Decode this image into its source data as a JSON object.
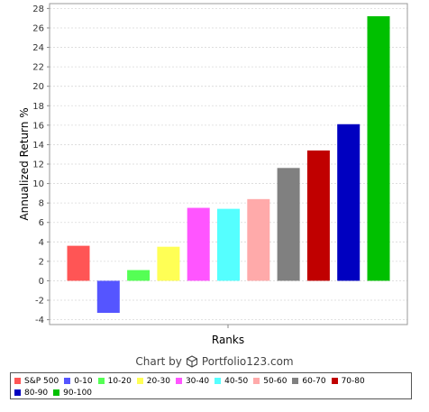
{
  "chart_data": {
    "type": "bar",
    "categories": [
      "S&P 500",
      "0-10",
      "10-20",
      "20-30",
      "30-40",
      "40-50",
      "50-60",
      "60-70",
      "70-80",
      "80-90",
      "90-100"
    ],
    "values": [
      3.6,
      -3.3,
      1.1,
      3.5,
      7.5,
      7.4,
      8.4,
      11.6,
      13.4,
      16.1,
      27.2
    ],
    "colors": [
      "#ff5555",
      "#5555ff",
      "#55ff55",
      "#ffff55",
      "#ff55ff",
      "#55ffff",
      "#ffaaaa",
      "#808080",
      "#c00000",
      "#0000c0",
      "#00c000"
    ],
    "xlabel": "Ranks",
    "ylabel": "Annualized Return %",
    "ylim": [
      -4.5,
      28.5
    ],
    "yticks": [
      -4,
      -2,
      0,
      2,
      4,
      6,
      8,
      10,
      12,
      14,
      16,
      18,
      20,
      22,
      24,
      26,
      28
    ],
    "grid": true,
    "legend_position": "bottom"
  },
  "credit": {
    "prefix": "Chart by",
    "site": "Portfolio123.com",
    "icon": "cube-icon"
  }
}
